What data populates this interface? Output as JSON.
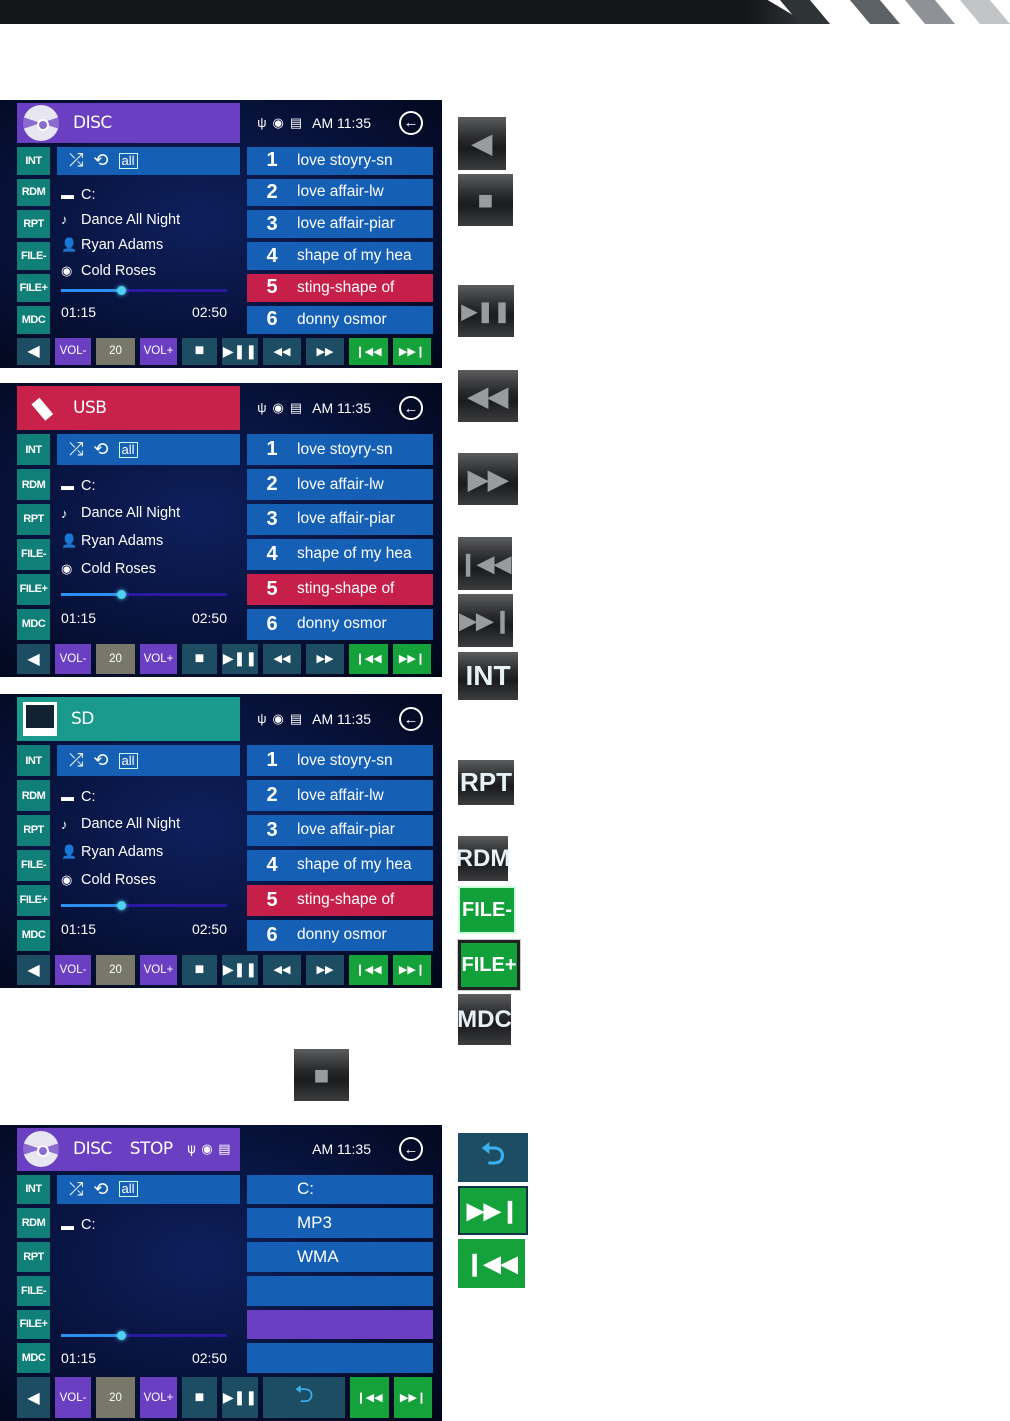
{
  "colors": {
    "disc": "#6b3fc1",
    "usb": "#c8214a",
    "sd": "#1a9a8c",
    "track": "#1560b4",
    "active_track": "#c51f4a",
    "side": "#0f7f78",
    "vol": "#6b3fc1",
    "volume_box": "#77786a",
    "green": "#16a23a",
    "bottom": "#1d4d62"
  },
  "panels": [
    {
      "source": "DISC",
      "status_text": "",
      "icon": "disc-icon",
      "header_color": "#6b3fc1",
      "time": "AM 11:35",
      "status_icons": [
        "usb-icon",
        "disc-status-icon",
        "sd-card-icon"
      ],
      "side_buttons": [
        "INT",
        "RDM",
        "RPT",
        "FILE-",
        "FILE+",
        "MDC"
      ],
      "repeat_label": "all",
      "folder": "C:",
      "title": "Dance All Night",
      "artist": "Ryan Adams",
      "album": "Cold Roses",
      "elapsed": "01:15",
      "total": "02:50",
      "progress": 0.36,
      "tracks": [
        {
          "num": "1",
          "name": "love stoyry-sn"
        },
        {
          "num": "2",
          "name": "love affair-lw"
        },
        {
          "num": "3",
          "name": "love affair-piar"
        },
        {
          "num": "4",
          "name": "shape of my hea"
        },
        {
          "num": "5",
          "name": "sting-shape of"
        },
        {
          "num": "6",
          "name": "donny osmor"
        }
      ],
      "active_track": 5,
      "volume": "20",
      "vol_down": "VOL-",
      "vol_up": "VOL+",
      "mode": "playback"
    },
    {
      "source": "USB",
      "status_text": "",
      "icon": "usb-drive-icon",
      "header_color": "#c8214a",
      "time": "AM 11:35",
      "status_icons": [
        "usb-icon",
        "disc-status-icon",
        "sd-card-icon"
      ],
      "side_buttons": [
        "INT",
        "RDM",
        "RPT",
        "FILE-",
        "FILE+",
        "MDC"
      ],
      "repeat_label": "all",
      "folder": "C:",
      "title": "Dance All Night",
      "artist": "Ryan Adams",
      "album": "Cold Roses",
      "elapsed": "01:15",
      "total": "02:50",
      "progress": 0.36,
      "tracks": [
        {
          "num": "1",
          "name": "love stoyry-sn"
        },
        {
          "num": "2",
          "name": "love affair-lw"
        },
        {
          "num": "3",
          "name": "love affair-piar"
        },
        {
          "num": "4",
          "name": "shape of my hea"
        },
        {
          "num": "5",
          "name": "sting-shape of"
        },
        {
          "num": "6",
          "name": "donny osmor"
        }
      ],
      "active_track": 5,
      "volume": "20",
      "vol_down": "VOL-",
      "vol_up": "VOL+",
      "mode": "playback"
    },
    {
      "source": "SD",
      "status_text": "",
      "icon": "sd-card-icon",
      "header_color": "#1a9a8c",
      "time": "AM 11:35",
      "status_icons": [
        "usb-icon",
        "disc-status-icon",
        "sd-card-icon"
      ],
      "side_buttons": [
        "INT",
        "RDM",
        "RPT",
        "FILE-",
        "FILE+",
        "MDC"
      ],
      "repeat_label": "all",
      "folder": "C:",
      "title": "Dance All Night",
      "artist": "Ryan Adams",
      "album": "Cold Roses",
      "elapsed": "01:15",
      "total": "02:50",
      "progress": 0.36,
      "tracks": [
        {
          "num": "1",
          "name": "love stoyry-sn"
        },
        {
          "num": "2",
          "name": "love affair-lw"
        },
        {
          "num": "3",
          "name": "love affair-piar"
        },
        {
          "num": "4",
          "name": "shape of my hea"
        },
        {
          "num": "5",
          "name": "sting-shape of"
        },
        {
          "num": "6",
          "name": "donny osmor"
        }
      ],
      "active_track": 5,
      "volume": "20",
      "vol_down": "VOL-",
      "vol_up": "VOL+",
      "mode": "playback"
    },
    {
      "source": "DISC",
      "status_text": "STOP",
      "icon": "disc-icon",
      "header_color": "#6b3fc1",
      "time": "AM 11:35",
      "status_icons": [
        "usb-icon",
        "disc-status-icon",
        "sd-card-icon"
      ],
      "side_buttons": [
        "INT",
        "RDM",
        "RPT",
        "FILE-",
        "FILE+",
        "MDC"
      ],
      "repeat_label": "all",
      "folder": "C:",
      "title": "",
      "artist": "",
      "album": "",
      "elapsed": "01:15",
      "total": "02:50",
      "progress": 0.36,
      "tracks": [
        {
          "num": "",
          "name": "C:"
        },
        {
          "num": "",
          "name": "MP3"
        },
        {
          "num": "",
          "name": "WMA"
        },
        {
          "num": "",
          "name": ""
        },
        {
          "num": "",
          "name": ""
        },
        {
          "num": "",
          "name": ""
        }
      ],
      "active_track": 5,
      "volume": "20",
      "vol_down": "VOL-",
      "vol_up": "VOL+",
      "mode": "browse"
    }
  ],
  "legend_icons": [
    "speaker-icon",
    "stop-icon",
    "play-pause-icon",
    "rewind-icon",
    "fast-forward-icon",
    "previous-track-icon",
    "next-track-icon",
    "int-icon",
    "rpt-icon",
    "rdm-icon",
    "file-minus-icon",
    "file-plus-icon",
    "mdc-icon",
    "stop-icon",
    "back-icon",
    "next-track-icon",
    "previous-track-icon"
  ],
  "legend_labels": {
    "int": "INT",
    "rpt": "RPT",
    "rdm": "RDM",
    "file_minus": "FILE-",
    "file_plus": "FILE+",
    "mdc": "MDC"
  }
}
